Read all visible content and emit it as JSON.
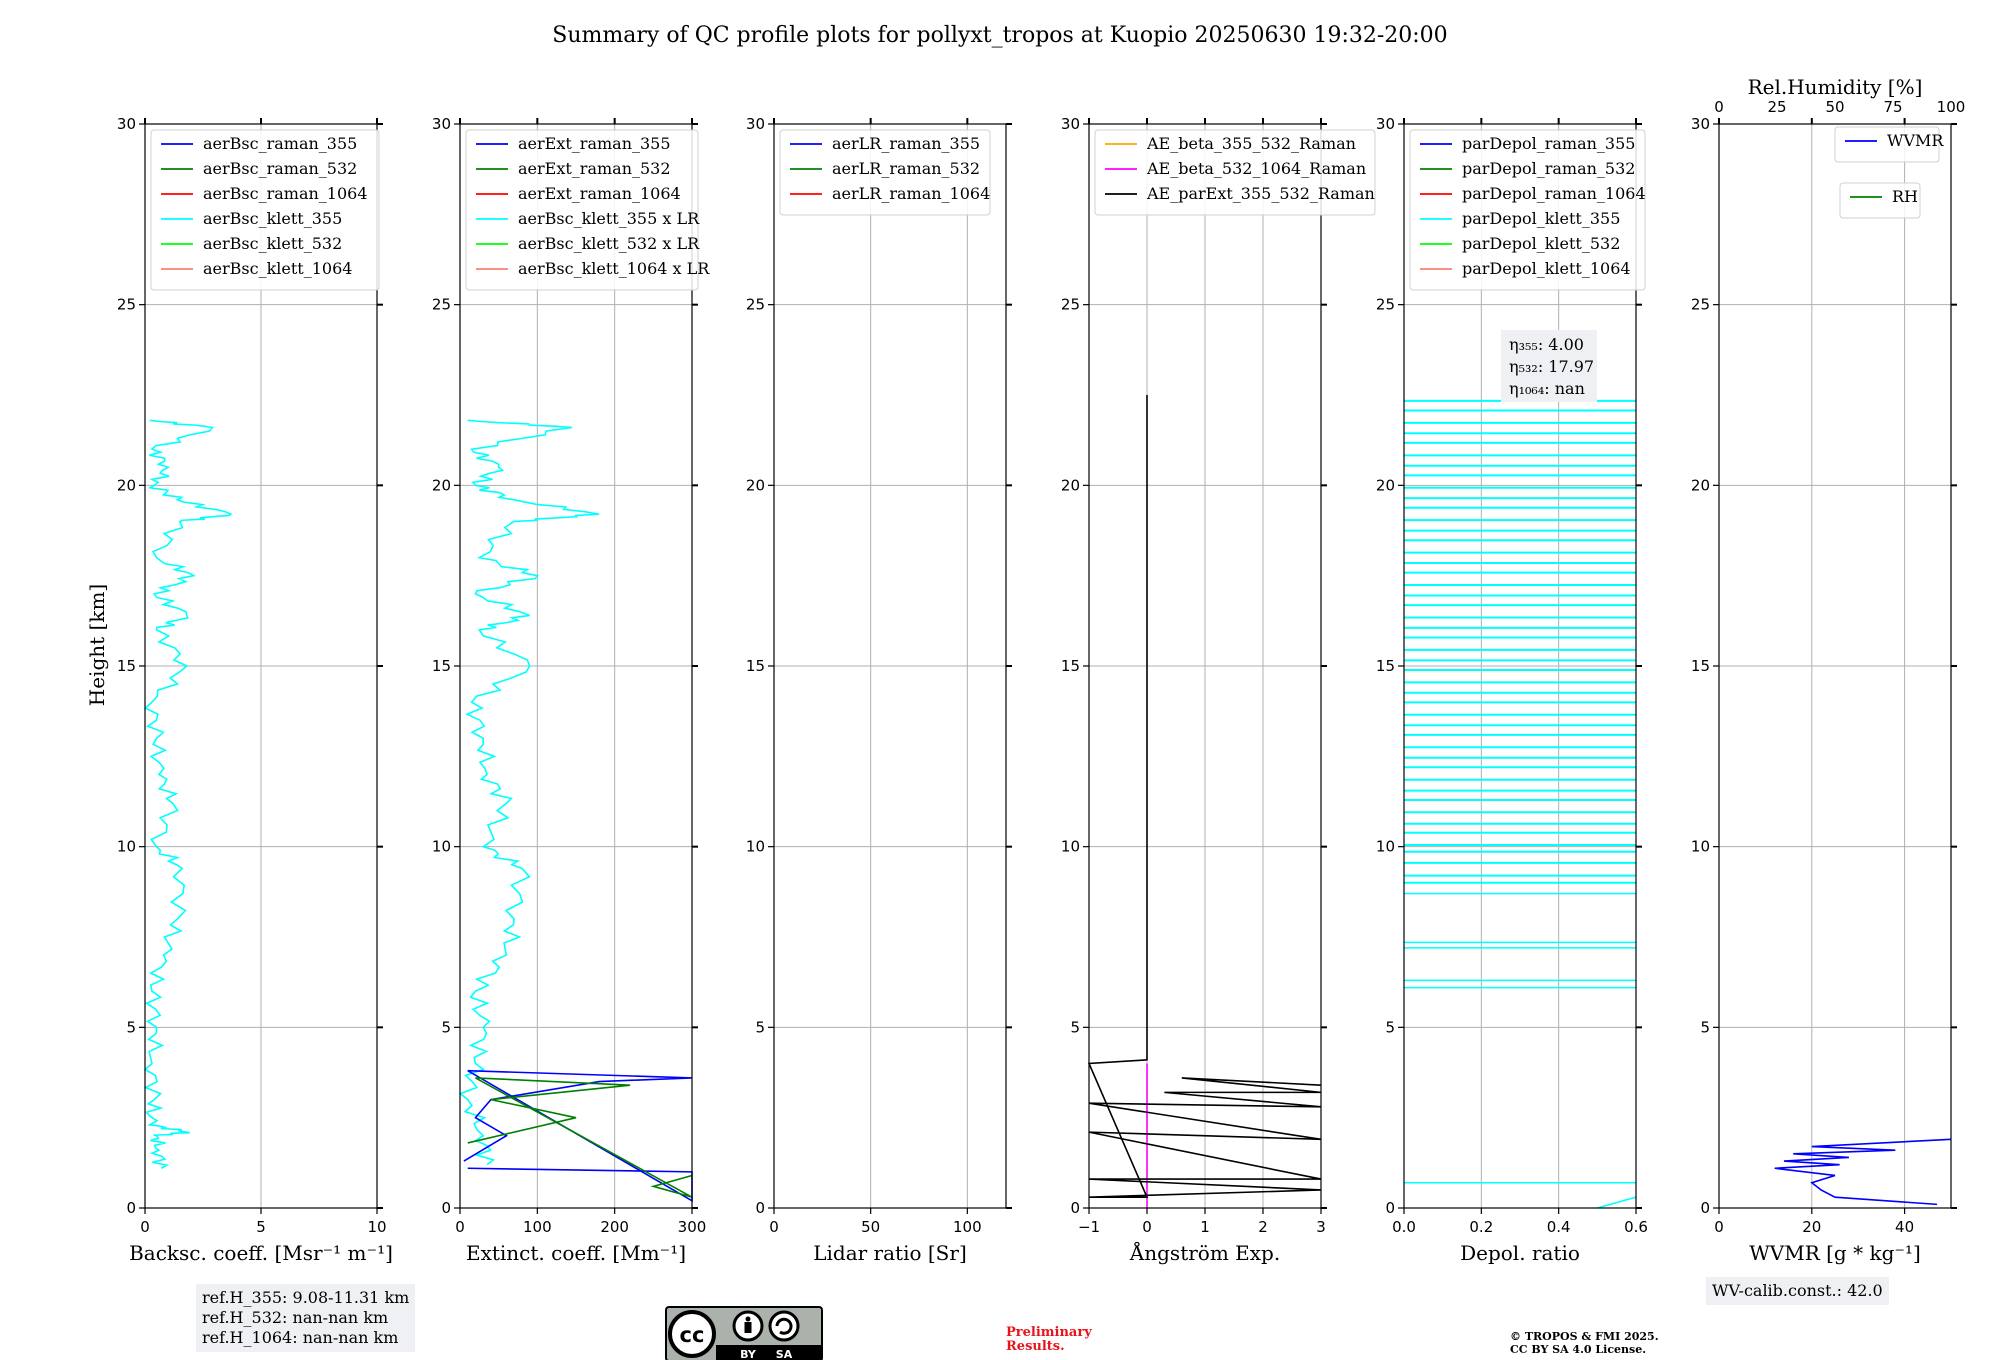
{
  "title": "Summary of QC profile plots for pollyxt_tropos at Kuopio 20250630 19:32-20:00",
  "ylabel": "Height [km]",
  "colors": {
    "blue": "#0000ff",
    "green": "#008000",
    "red": "#ff0000",
    "cyan": "#00ffff",
    "lime": "#00ff00",
    "salmon": "#fa8072",
    "orange": "#ffa500",
    "magenta": "#ff00ff",
    "black": "#000000"
  },
  "chart_data": [
    {
      "type": "line",
      "xlabel": "Backsc. coeff. [Msr⁻¹ m⁻¹]",
      "xlim": [
        0,
        10
      ],
      "xticks": [
        "0",
        "5",
        "10"
      ],
      "xtick_values": [
        0,
        5,
        10
      ],
      "ylim": [
        0,
        30
      ],
      "yticks": [
        "0",
        "5",
        "10",
        "15",
        "20",
        "25",
        "30"
      ],
      "legend": [
        "aerBsc_raman_355",
        "aerBsc_raman_532",
        "aerBsc_raman_1064",
        "aerBsc_klett_355",
        "aerBsc_klett_532",
        "aerBsc_klett_1064"
      ],
      "legend_colors": [
        "blue",
        "green",
        "red",
        "cyan",
        "lime",
        "salmon"
      ],
      "series": [
        {
          "name": "aerBsc_klett_355",
          "color": "cyan",
          "points": [
            [
              0.7,
              1.1
            ],
            [
              0.6,
              1.6
            ],
            [
              0.5,
              2.0
            ],
            [
              1.8,
              2.1
            ],
            [
              0.2,
              2.3
            ],
            [
              0.4,
              3.0
            ],
            [
              0.3,
              4.0
            ],
            [
              0.5,
              5.0
            ],
            [
              0.3,
              6.0
            ],
            [
              0.8,
              7.0
            ],
            [
              1.4,
              8.0
            ],
            [
              1.6,
              9.4
            ],
            [
              0.5,
              10.0
            ],
            [
              1.2,
              11.2
            ],
            [
              0.6,
              12.0
            ],
            [
              0.5,
              13.0
            ],
            [
              0.3,
              14.0
            ],
            [
              1.8,
              15.0
            ],
            [
              0.5,
              16.0
            ],
            [
              1.8,
              16.4
            ],
            [
              0.4,
              17.0
            ],
            [
              2.1,
              17.5
            ],
            [
              0.5,
              18.0
            ],
            [
              1.5,
              19.0
            ],
            [
              3.7,
              19.2
            ],
            [
              1.4,
              19.6
            ],
            [
              0.4,
              20.0
            ],
            [
              1.0,
              20.5
            ],
            [
              0.3,
              21.0
            ],
            [
              2.9,
              21.6
            ],
            [
              0.2,
              21.8
            ]
          ]
        }
      ]
    },
    {
      "type": "line",
      "xlabel": "Extinct. coeff. [Mm⁻¹]",
      "xlim": [
        0,
        300
      ],
      "xticks": [
        "0",
        "100",
        "200",
        "300"
      ],
      "xtick_values": [
        0,
        100,
        200,
        300
      ],
      "ylim": [
        0,
        30
      ],
      "yticks": [
        "0",
        "5",
        "10",
        "15",
        "20",
        "25",
        "30"
      ],
      "legend": [
        "aerExt_raman_355",
        "aerExt_raman_532",
        "aerExt_raman_1064",
        "aerBsc_klett_355 x LR",
        "aerBsc_klett_532 x LR",
        "aerBsc_klett_1064 x LR"
      ],
      "legend_colors": [
        "blue",
        "green",
        "red",
        "cyan",
        "lime",
        "salmon"
      ],
      "series": [
        {
          "name": "aerBsc_klett_355 x LR",
          "color": "cyan",
          "points": [
            [
              35,
              1.2
            ],
            [
              30,
              2.0
            ],
            [
              10,
              3.0
            ],
            [
              20,
              4.0
            ],
            [
              30,
              5.0
            ],
            [
              20,
              6.0
            ],
            [
              60,
              7.0
            ],
            [
              70,
              8.0
            ],
            [
              80,
              9.4
            ],
            [
              30,
              10.0
            ],
            [
              60,
              11.2
            ],
            [
              35,
              12.0
            ],
            [
              30,
              13.0
            ],
            [
              15,
              14.0
            ],
            [
              90,
              15.0
            ],
            [
              25,
              16.0
            ],
            [
              90,
              16.4
            ],
            [
              20,
              17.0
            ],
            [
              100,
              17.5
            ],
            [
              25,
              18.0
            ],
            [
              70,
              19.0
            ],
            [
              180,
              19.2
            ],
            [
              70,
              19.6
            ],
            [
              20,
              20.0
            ],
            [
              50,
              20.5
            ],
            [
              15,
              21.0
            ],
            [
              145,
              21.6
            ],
            [
              10,
              21.8
            ]
          ]
        },
        {
          "name": "aerExt_raman_355",
          "color": "blue",
          "points": [
            [
              5,
              1.3
            ],
            [
              60,
              2.0
            ],
            [
              20,
              2.5
            ],
            [
              40,
              3.0
            ],
            [
              180,
              3.5
            ],
            [
              300,
              3.6
            ],
            [
              10,
              3.8
            ],
            [
              300,
              0.2
            ],
            [
              300,
              0.6
            ],
            [
              300,
              1.0
            ],
            [
              10,
              1.1
            ]
          ]
        },
        {
          "name": "aerExt_raman_532",
          "color": "green",
          "points": [
            [
              10,
              1.8
            ],
            [
              150,
              2.5
            ],
            [
              40,
              3.0
            ],
            [
              220,
              3.4
            ],
            [
              20,
              3.6
            ],
            [
              300,
              0.3
            ],
            [
              250,
              0.6
            ],
            [
              300,
              0.9
            ]
          ]
        }
      ]
    },
    {
      "type": "line",
      "xlabel": "Lidar ratio [Sr]",
      "xlim": [
        0,
        120
      ],
      "xticks": [
        "0",
        "50",
        "100"
      ],
      "xtick_values": [
        0,
        50,
        100
      ],
      "ylim": [
        0,
        30
      ],
      "yticks": [
        "0",
        "5",
        "10",
        "15",
        "20",
        "25",
        "30"
      ],
      "legend": [
        "aerLR_raman_355",
        "aerLR_raman_532",
        "aerLR_raman_1064"
      ],
      "legend_colors": [
        "blue",
        "green",
        "red"
      ],
      "series": []
    },
    {
      "type": "line",
      "xlabel": "Ångström Exp.",
      "xlim": [
        -1,
        3
      ],
      "xticks": [
        "−1",
        "0",
        "1",
        "2",
        "3"
      ],
      "xtick_values": [
        -1,
        0,
        1,
        2,
        3
      ],
      "ylim": [
        0,
        30
      ],
      "yticks": [
        "0",
        "5",
        "10",
        "15",
        "20",
        "25",
        "30"
      ],
      "legend": [
        "AE_beta_355_532_Raman",
        "AE_beta_532_1064_Raman",
        "AE_parExt_355_532_Raman"
      ],
      "legend_colors": [
        "orange",
        "magenta",
        "black"
      ],
      "series": [
        {
          "name": "AE_beta_532_1064_Raman",
          "color": "magenta",
          "points": [
            [
              0,
              0.0
            ],
            [
              0,
              4.0
            ]
          ]
        },
        {
          "name": "AE_parExt_355_532_Raman",
          "color": "black",
          "points": [
            [
              0,
              22.5
            ],
            [
              0,
              4.1
            ],
            [
              -1,
              4.0
            ],
            [
              0,
              0.3
            ],
            [
              -1,
              0.3
            ],
            [
              3,
              0.5
            ],
            [
              -1,
              0.8
            ],
            [
              3,
              0.8
            ],
            [
              -1,
              2.1
            ],
            [
              3,
              1.9
            ],
            [
              -1,
              2.9
            ],
            [
              3,
              2.8
            ],
            [
              0.3,
              3.2
            ],
            [
              3,
              3.2
            ],
            [
              0.6,
              3.6
            ],
            [
              3,
              3.4
            ]
          ]
        }
      ]
    },
    {
      "type": "line",
      "xlabel": "Depol. ratio",
      "xlim": [
        0,
        0.6
      ],
      "xticks": [
        "0.0",
        "0.2",
        "0.4",
        "0.6"
      ],
      "xtick_values": [
        0,
        0.2,
        0.4,
        0.6
      ],
      "ylim": [
        0,
        30
      ],
      "yticks": [
        "0",
        "5",
        "10",
        "15",
        "20",
        "25",
        "30"
      ],
      "legend": [
        "parDepol_raman_355",
        "parDepol_raman_532",
        "parDepol_raman_1064",
        "parDepol_klett_355",
        "parDepol_klett_532",
        "parDepol_klett_1064"
      ],
      "legend_colors": [
        "blue",
        "green",
        "red",
        "cyan",
        "lime",
        "salmon"
      ],
      "series": [
        {
          "name": "parDepol_klett_355",
          "color": "cyan",
          "band": [
            [
              9.0,
              22.4
            ],
            [
              13.9,
              13.4
            ],
            [
              14.0,
              20.0
            ]
          ],
          "points": [
            [
              0.5,
              0.0
            ],
            [
              0.6,
              0.3
            ]
          ]
        }
      ],
      "annotation": [
        "η₃₅₅: 4.00",
        "η₅₃₂: 17.97",
        "η₁₀₆₄: nan"
      ]
    },
    {
      "type": "line",
      "xlabel": "WVMR [g * kg⁻¹]",
      "xlim": [
        0,
        50
      ],
      "xticks": [
        "0",
        "20",
        "40"
      ],
      "xtick_values": [
        0,
        20,
        40
      ],
      "ylim": [
        0,
        30
      ],
      "yticks": [
        "0",
        "5",
        "10",
        "15",
        "20",
        "25",
        "30"
      ],
      "top_xlabel": "Rel.Humidity [%]",
      "top_xlim": [
        0,
        100
      ],
      "top_xticks": [
        "0",
        "25",
        "50",
        "75",
        "100"
      ],
      "top_xtick_values": [
        0,
        25,
        50,
        75,
        100
      ],
      "legend": [
        "WVMR"
      ],
      "legend_colors": [
        "blue"
      ],
      "legend2": [
        "RH"
      ],
      "legend2_colors": [
        "green"
      ],
      "series": [
        {
          "name": "WVMR",
          "color": "blue",
          "points": [
            [
              47,
              0.1
            ],
            [
              25,
              0.3
            ],
            [
              22,
              0.5
            ],
            [
              20,
              0.7
            ],
            [
              25,
              0.9
            ],
            [
              12,
              1.1
            ],
            [
              26,
              1.2
            ],
            [
              14,
              1.3
            ],
            [
              28,
              1.4
            ],
            [
              16,
              1.5
            ],
            [
              38,
              1.6
            ],
            [
              20,
              1.7
            ],
            [
              50,
              1.9
            ]
          ]
        }
      ]
    }
  ],
  "info": {
    "refh_355": "ref.H_355: 9.08-11.31 km",
    "refh_532": "ref.H_532: nan-nan km",
    "refh_1064": "ref.H_1064: nan-nan km",
    "wv_calib": "WV-calib.const.: 42.0",
    "prelim_1": "Preliminary",
    "prelim_2": "Results.",
    "copyright_1": "© TROPOS & FMI 2025.",
    "copyright_2": "CC BY SA 4.0 License.",
    "license_logo": [
      "cc",
      "BY",
      "SA"
    ]
  }
}
